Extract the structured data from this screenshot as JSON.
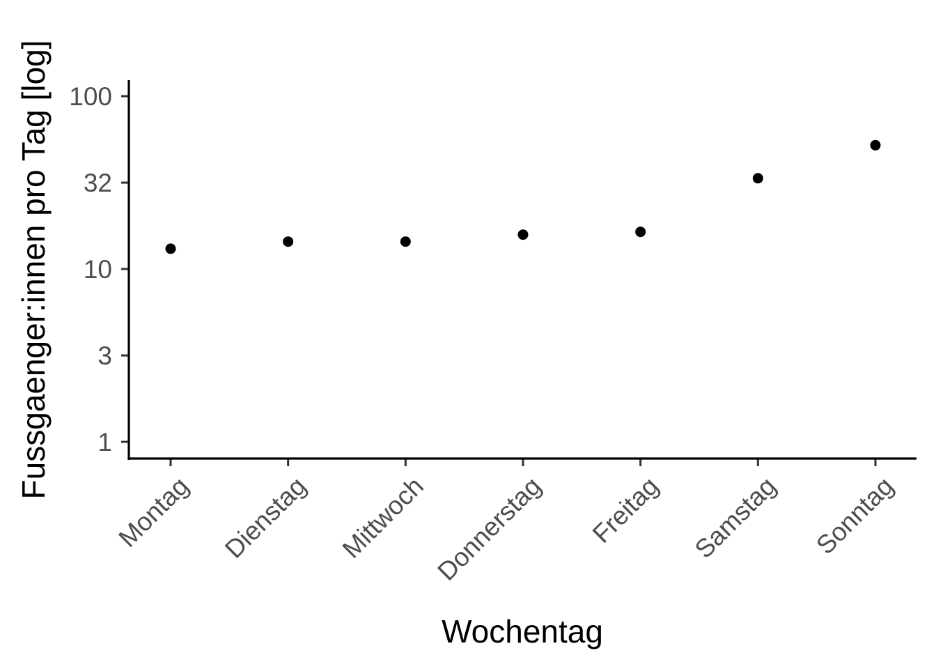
{
  "chart_data": {
    "type": "scatter",
    "title": "",
    "xlabel": "Wochentag",
    "ylabel": "Fussgaenger:innen pro Tag [log]",
    "y_scale": "log10",
    "ylim": [
      0.9,
      120
    ],
    "y_ticks": [
      {
        "value": 1,
        "label": "1"
      },
      {
        "value": 3.16,
        "label": "3"
      },
      {
        "value": 10,
        "label": "10"
      },
      {
        "value": 31.6,
        "label": "32"
      },
      {
        "value": 100,
        "label": "100"
      }
    ],
    "categories": [
      "Montag",
      "Dienstag",
      "Mittwoch",
      "Donnerstag",
      "Freitag",
      "Samstag",
      "Sonntag"
    ],
    "series": [
      {
        "values": [
          13.1,
          14.4,
          14.4,
          15.8,
          16.4,
          33.5,
          52.0
        ]
      }
    ],
    "point_color": "#000000",
    "grid": false,
    "legend": "none"
  }
}
